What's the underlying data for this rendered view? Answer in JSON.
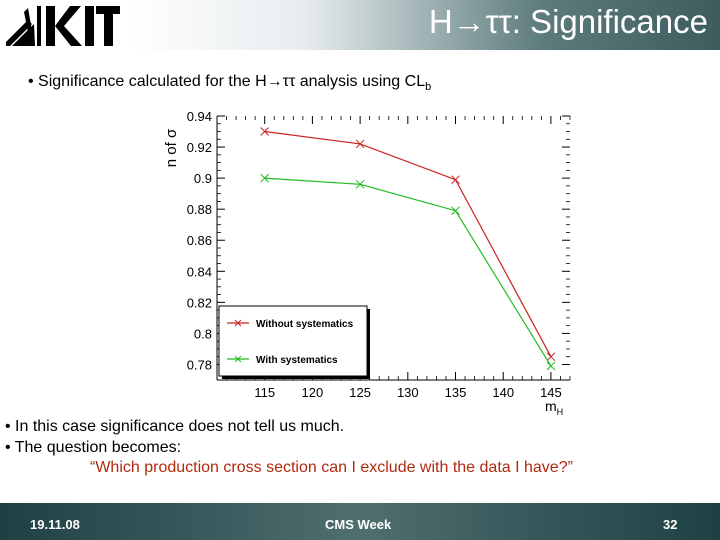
{
  "slide": {
    "title": "H→ττ: Significance",
    "top_bullet": "• Significance calculated for the H→ττ analysis using CL",
    "top_bullet_sub": "b",
    "bullets": [
      "• In this case significance does not tell us much.",
      "• The question becomes:"
    ],
    "quote": "“Which production cross section can I exclude with the data I have?”"
  },
  "footer": {
    "date": "19.11.08",
    "center": "CMS Week",
    "page": "32"
  },
  "chart_data": {
    "type": "line",
    "title": "",
    "xlabel": "m_H",
    "ylabel": "n of σ",
    "xlim": [
      110,
      147
    ],
    "ylim": [
      0.77,
      0.94
    ],
    "x_ticks": [
      "115",
      "120",
      "125",
      "130",
      "135",
      "140",
      "145"
    ],
    "y_ticks": [
      "0.94",
      "0.92",
      "0.9",
      "0.88",
      "0.86",
      "0.84",
      "0.82",
      "0.8",
      "0.78"
    ],
    "legend_position": "bottom-left",
    "series": [
      {
        "name": "Without systematics",
        "color": "#cc2222",
        "x": [
          115,
          125,
          135,
          145
        ],
        "y": [
          0.93,
          0.922,
          0.899,
          0.785
        ]
      },
      {
        "name": "With systematics",
        "color": "#22bb22",
        "x": [
          115,
          125,
          135,
          145
        ],
        "y": [
          0.9,
          0.896,
          0.879,
          0.779
        ]
      }
    ]
  }
}
